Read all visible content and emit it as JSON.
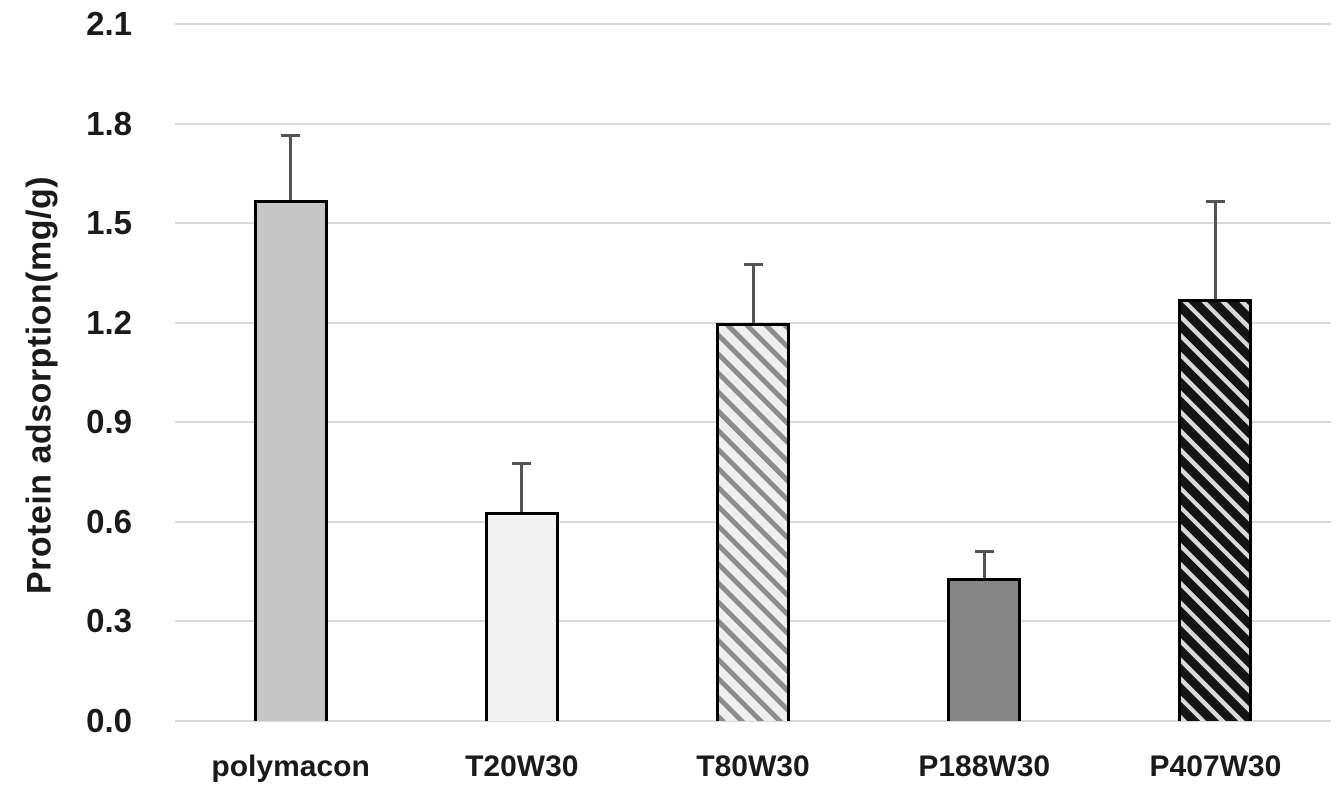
{
  "chart_data": {
    "type": "bar",
    "title": "",
    "ylabel": "Protein adsorption(mg/g)",
    "xlabel": "",
    "categories": [
      "polymacon",
      "T20W30",
      "T80W30",
      "P188W30",
      "P407W30"
    ],
    "values": [
      1.57,
      0.63,
      1.2,
      0.43,
      1.27
    ],
    "error_plus": [
      0.2,
      0.15,
      0.18,
      0.085,
      0.3
    ],
    "ylim": [
      0,
      2.1
    ],
    "ytick_step": 0.3,
    "ytick_labels": [
      "0.0",
      "0.3",
      "0.6",
      "0.9",
      "1.2",
      "1.5",
      "1.8",
      "2.1"
    ],
    "grid": true,
    "legend_position": "none",
    "bar_styles": [
      "solid-gray",
      "solid-lightgray",
      "hatch-light",
      "solid-darkgray",
      "hatch-dark"
    ],
    "colors": {
      "bar_border": "#000000",
      "solid_gray": "#c6c6c6",
      "solid_lightgray": "#f2f2f2",
      "solid_darkgray": "#858585",
      "hatch_light_stripe": "#8c8c8c",
      "hatch_light_bg": "#efefef",
      "hatch_dark_stripe": "#d9d9d9",
      "hatch_dark_bg": "#141414",
      "gridline": "#d9d9d9",
      "error_bar": "#545454",
      "text": "#1a1a1a"
    }
  }
}
